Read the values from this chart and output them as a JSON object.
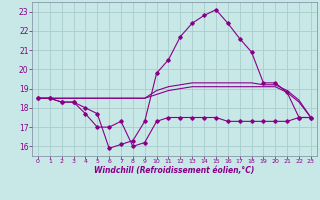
{
  "xlabel": "Windchill (Refroidissement éolien,°C)",
  "background_color": "#c8e8e8",
  "grid_color": "#aacccc",
  "line_color": "#880088",
  "x_hours": [
    0,
    1,
    2,
    3,
    4,
    5,
    6,
    7,
    8,
    9,
    10,
    11,
    12,
    13,
    14,
    15,
    16,
    17,
    18,
    19,
    20,
    21,
    22,
    23
  ],
  "s_windchill": [
    18.5,
    18.5,
    18.3,
    18.3,
    17.7,
    17.0,
    17.0,
    17.3,
    16.0,
    16.2,
    17.3,
    17.5,
    17.5,
    17.5,
    17.5,
    17.5,
    17.3,
    17.3,
    17.3,
    17.3,
    17.3,
    17.3,
    17.5,
    17.5
  ],
  "s_temp": [
    18.5,
    18.5,
    18.3,
    18.3,
    18.0,
    17.7,
    15.9,
    16.1,
    16.3,
    17.3,
    19.8,
    20.5,
    21.7,
    22.4,
    22.8,
    23.1,
    22.4,
    21.6,
    20.9,
    19.3,
    19.3,
    18.8,
    17.5,
    17.5
  ],
  "s_flat1": [
    18.5,
    18.5,
    18.5,
    18.5,
    18.5,
    18.5,
    18.5,
    18.5,
    18.5,
    18.5,
    18.7,
    18.9,
    19.0,
    19.1,
    19.1,
    19.1,
    19.1,
    19.1,
    19.1,
    19.1,
    19.1,
    18.8,
    18.3,
    17.5
  ],
  "s_flat2": [
    18.5,
    18.5,
    18.5,
    18.5,
    18.5,
    18.5,
    18.5,
    18.5,
    18.5,
    18.5,
    18.9,
    19.1,
    19.2,
    19.3,
    19.3,
    19.3,
    19.3,
    19.3,
    19.3,
    19.2,
    19.2,
    18.9,
    18.4,
    17.5
  ],
  "ylim": [
    15.5,
    23.5
  ],
  "yticks": [
    16,
    17,
    18,
    19,
    20,
    21,
    22,
    23
  ],
  "xticks": [
    0,
    1,
    2,
    3,
    4,
    5,
    6,
    7,
    8,
    9,
    10,
    11,
    12,
    13,
    14,
    15,
    16,
    17,
    18,
    19,
    20,
    21,
    22,
    23
  ],
  "figsize": [
    3.2,
    2.0
  ],
  "dpi": 100
}
